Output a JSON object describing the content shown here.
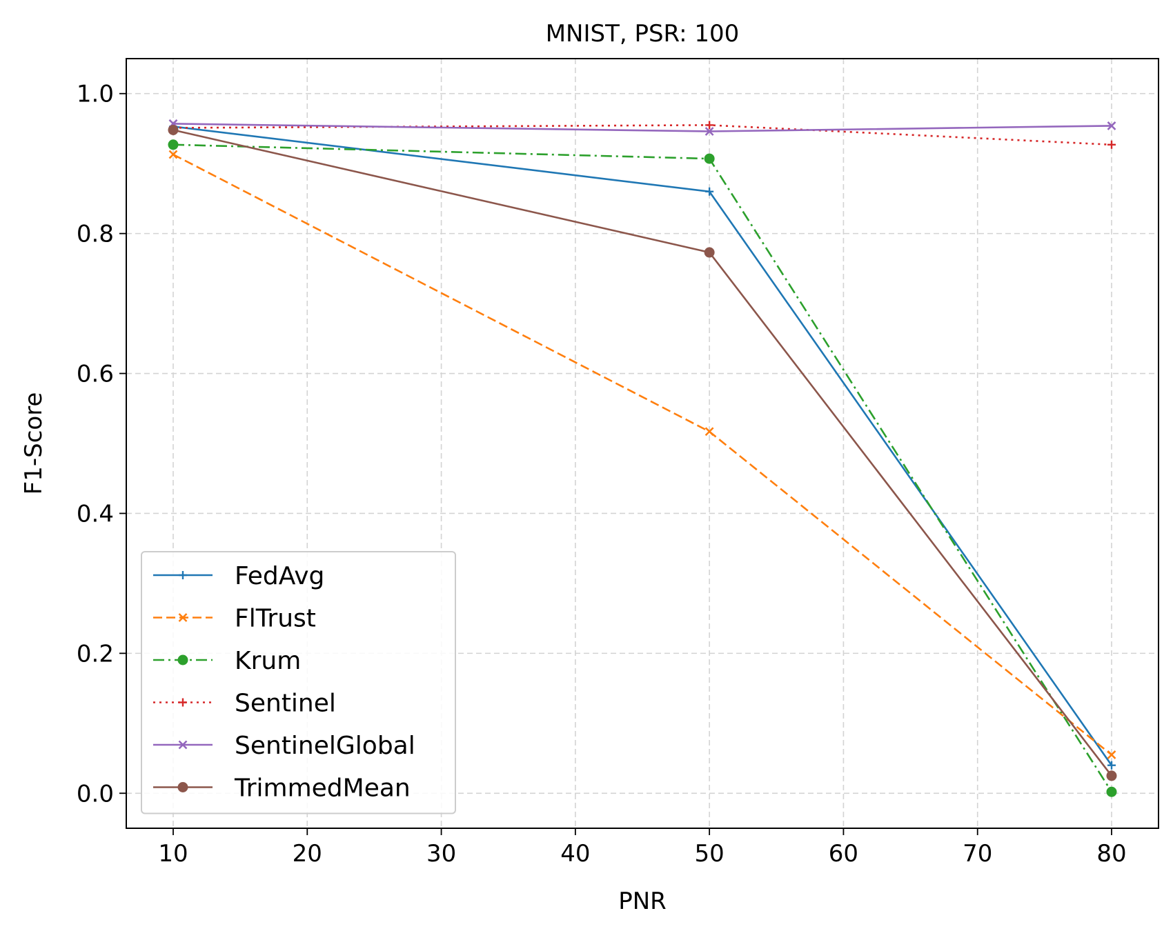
{
  "chart_data": {
    "type": "line",
    "title": "MNIST, PSR: 100",
    "xlabel": "PNR",
    "ylabel": "F1-Score",
    "x": [
      10,
      50,
      80
    ],
    "xlim": [
      6.5,
      83.5
    ],
    "ylim": [
      -0.05,
      1.05
    ],
    "xticks": [
      10,
      20,
      30,
      40,
      50,
      60,
      70,
      80
    ],
    "yticks": [
      0.0,
      0.2,
      0.4,
      0.6,
      0.8,
      1.0
    ],
    "xtick_labels": [
      "10",
      "20",
      "30",
      "40",
      "50",
      "60",
      "70",
      "80"
    ],
    "ytick_labels": [
      "0.0",
      "0.2",
      "0.4",
      "0.6",
      "0.8",
      "1.0"
    ],
    "grid": true,
    "legend_position": "lower-left",
    "series": [
      {
        "name": "FedAvg",
        "values": [
          0.953,
          0.86,
          0.04
        ],
        "color": "#1f77b4",
        "dash": "solid",
        "marker": "plus"
      },
      {
        "name": "FlTrust",
        "values": [
          0.913,
          0.517,
          0.055
        ],
        "color": "#ff7f0e",
        "dash": "dashed",
        "marker": "x"
      },
      {
        "name": "Krum",
        "values": [
          0.927,
          0.907,
          0.002
        ],
        "color": "#2ca02c",
        "dash": "dashdot",
        "marker": "dot"
      },
      {
        "name": "Sentinel",
        "values": [
          0.951,
          0.955,
          0.927
        ],
        "color": "#d62728",
        "dash": "dotted",
        "marker": "plus"
      },
      {
        "name": "SentinelGlobal",
        "values": [
          0.957,
          0.946,
          0.954
        ],
        "color": "#9467bd",
        "dash": "solid",
        "marker": "x"
      },
      {
        "name": "TrimmedMean",
        "values": [
          0.948,
          0.773,
          0.025
        ],
        "color": "#8c564b",
        "dash": "solid",
        "marker": "dot"
      }
    ]
  }
}
